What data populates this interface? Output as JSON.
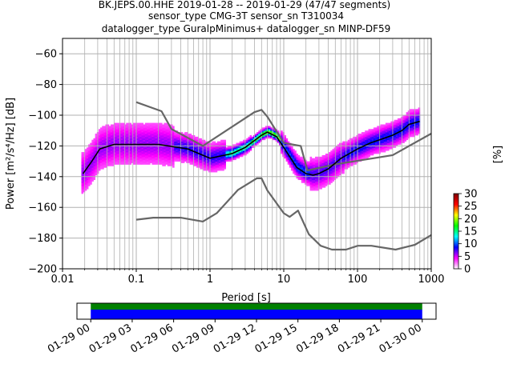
{
  "title": {
    "line1": "BK.JEPS.00.HHE   2019-01-28 -- 2019-01-29  (47/47 segments)",
    "line2": "sensor_type CMG-3T sensor_sn T310034",
    "line3": "datalogger_type GuralpMinimus+ datalogger_sn MINP-DF59"
  },
  "colors": {
    "grid": "#b0b0b0",
    "noise_model": "#666666",
    "mode_line": "#000000",
    "coverage_top": "#008000",
    "coverage_bottom": "#0000ff"
  },
  "chart_data": [
    {
      "type": "heatmap",
      "title": "",
      "xlabel": "Period [s]",
      "ylabel": "Power [m²/s⁴/Hz] [dB]",
      "xscale": "log",
      "xlim": [
        0.01,
        1000
      ],
      "ylim": [
        -200,
        -50
      ],
      "xticks": [
        0.01,
        0.1,
        1,
        10,
        100,
        1000
      ],
      "xtick_labels": [
        "0.01",
        "0.1",
        "1",
        "10",
        "100",
        "1000"
      ],
      "yticks": [
        -200,
        -180,
        -160,
        -140,
        -120,
        -100,
        -80,
        -60
      ],
      "ytick_labels": [
        "−200",
        "−180",
        "−160",
        "−140",
        "−120",
        "−100",
        "−80",
        "−60"
      ],
      "grid": true,
      "colorbar": {
        "label": "[%]",
        "range": [
          0,
          30
        ],
        "ticks": [
          0,
          5,
          10,
          15,
          20,
          25,
          30
        ],
        "tick_labels": [
          "0",
          "5",
          "10",
          "15",
          "20",
          "25",
          "30"
        ],
        "colormap": [
          "#ffffff",
          "#ff00ff",
          "#0000ff",
          "#00ffff",
          "#00ff00",
          "#ffff00",
          "#ff0000",
          "#800000"
        ]
      },
      "mode_curve": {
        "period": [
          0.019,
          0.025,
          0.032,
          0.05,
          0.1,
          0.2,
          0.5,
          1,
          2,
          3,
          5,
          6,
          8,
          10,
          15,
          20,
          25,
          30,
          40,
          60,
          100,
          150,
          200,
          300,
          400,
          500,
          700
        ],
        "power": [
          -138,
          -130,
          -122,
          -119,
          -119,
          -119,
          -122,
          -128,
          -125,
          -121,
          -113,
          -111,
          -114,
          -121,
          -134,
          -138,
          -139,
          -138,
          -135,
          -128,
          -122,
          -118,
          -116,
          -113,
          -110,
          -106,
          -104
        ]
      },
      "noise_models": [
        {
          "name": "",
          "period": [
            0.1,
            0.22,
            0.3,
            0.8,
            4,
            5,
            6,
            10,
            17,
            21,
            50,
            300,
            1000
          ],
          "power": [
            -91.5,
            -97.4,
            -109,
            -120,
            -98,
            -96.5,
            -101,
            -118,
            -120,
            -136,
            -132,
            -126,
            -112
          ]
        },
        {
          "name": "",
          "period": [
            0.1,
            0.17,
            0.4,
            0.8,
            1.24,
            2.4,
            4.3,
            5,
            6,
            10,
            12,
            15.6,
            21.9,
            31.6,
            45,
            70,
            101,
            154,
            328,
            600,
            1000
          ],
          "power": [
            -168,
            -166.7,
            -166.7,
            -169.2,
            -163.7,
            -148.6,
            -141.1,
            -141.1,
            -149,
            -163.8,
            -166.2,
            -162.1,
            -177.5,
            -185,
            -187.5,
            -187.5,
            -185,
            -185,
            -187.5,
            -184.4,
            -178
          ]
        }
      ]
    },
    {
      "type": "bar",
      "title": "",
      "orientation": "horizontal",
      "xlim": [
        "2019-01-28T23:00",
        "2019-01-30T01:00"
      ],
      "xtick_labels": [
        "01-29 00",
        "01-29 03",
        "01-29 06",
        "01-29 09",
        "01-29 12",
        "01-29 15",
        "01-29 18",
        "01-29 21",
        "01-30 00"
      ],
      "series": [
        {
          "start": "2019-01-29T00:00",
          "end": "2019-01-30T00:00",
          "color": "#008000"
        },
        {
          "start": "2019-01-29T00:00",
          "end": "2019-01-30T00:00",
          "color": "#0000ff"
        }
      ]
    }
  ]
}
